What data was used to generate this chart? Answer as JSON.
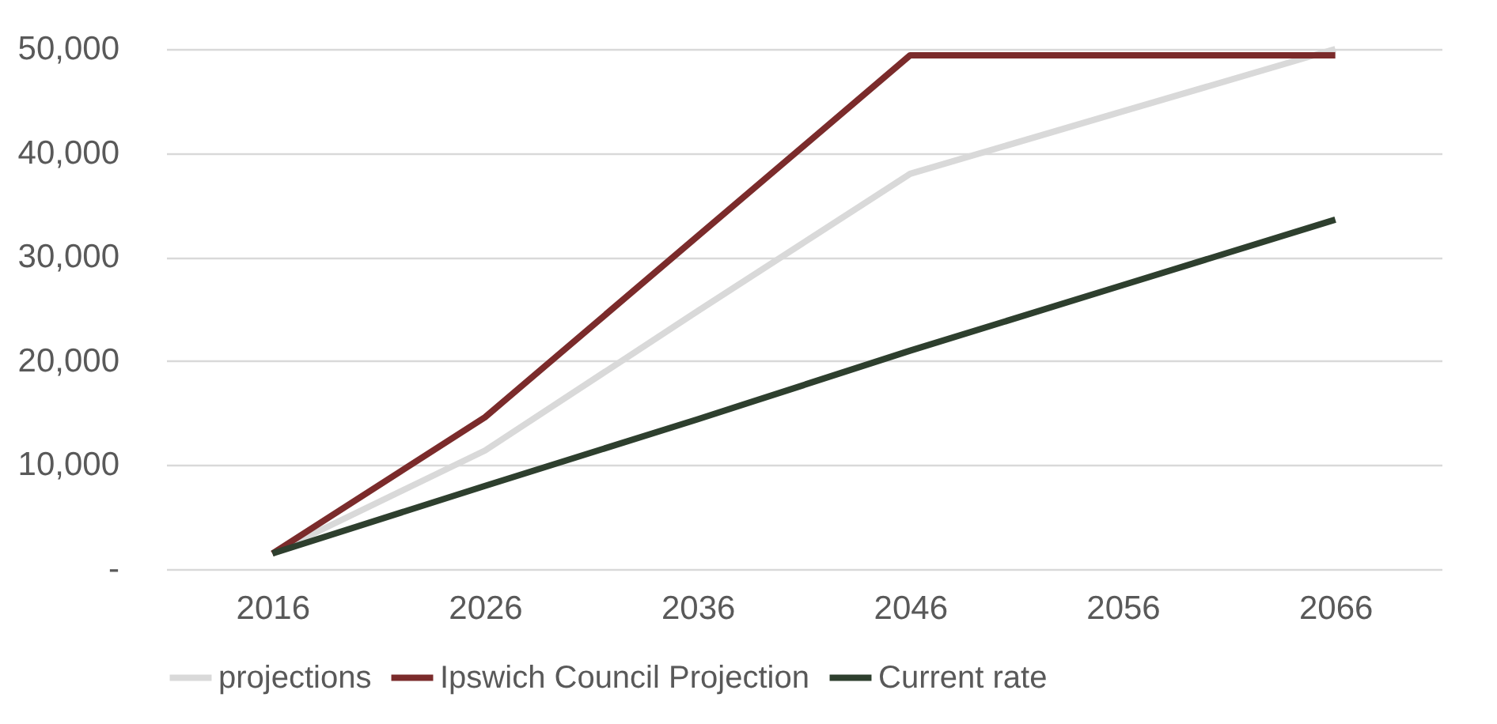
{
  "chart_data": {
    "type": "line",
    "categories": [
      "2016",
      "2026",
      "2036",
      "2046",
      "2056",
      "2066"
    ],
    "series": [
      {
        "name": "projections",
        "color": "#d9d9d9",
        "values": [
          1500,
          11400,
          24800,
          38000,
          44000,
          50000
        ]
      },
      {
        "name": "Ipswich Council Projection",
        "color": "#7b2b2b",
        "values": [
          1500,
          14600,
          32000,
          49400,
          49400,
          49400
        ]
      },
      {
        "name": "Current rate",
        "color": "#2e3f2e",
        "values": [
          1500,
          8000,
          14400,
          21000,
          27300,
          33600
        ]
      }
    ],
    "ylim": [
      0,
      50000
    ],
    "yticks": [
      {
        "value": 0,
        "label": "-"
      },
      {
        "value": 10000,
        "label": "10,000"
      },
      {
        "value": 20000,
        "label": "20,000"
      },
      {
        "value": 30000,
        "label": "30,000"
      },
      {
        "value": 40000,
        "label": "40,000"
      },
      {
        "value": 50000,
        "label": "50,000"
      }
    ],
    "grid": "y",
    "legend": "bottom",
    "marker": "none",
    "line_style": "solid"
  }
}
